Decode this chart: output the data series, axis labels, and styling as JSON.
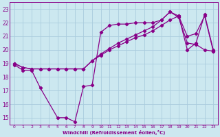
{
  "xlabel": "Windchill (Refroidissement éolien,°C)",
  "xlim": [
    -0.5,
    23.5
  ],
  "ylim": [
    14.5,
    23.5
  ],
  "yticks": [
    15,
    16,
    17,
    18,
    19,
    20,
    21,
    22,
    23
  ],
  "xticks": [
    0,
    1,
    2,
    3,
    4,
    5,
    6,
    7,
    8,
    9,
    10,
    11,
    12,
    13,
    14,
    15,
    16,
    17,
    18,
    19,
    20,
    21,
    22,
    23
  ],
  "bg_color": "#cce8f0",
  "grid_color": "#aaccdd",
  "line_color": "#880088",
  "line1_x": [
    0,
    1,
    2,
    3,
    5,
    6,
    7,
    8,
    9,
    10,
    11,
    12,
    13,
    14,
    15,
    16,
    17,
    18,
    19,
    20,
    21,
    22,
    23
  ],
  "line1_y": [
    18.9,
    18.5,
    18.5,
    17.2,
    15.0,
    15.0,
    14.7,
    17.3,
    17.4,
    21.3,
    21.8,
    21.9,
    21.9,
    22.0,
    22.0,
    22.0,
    22.2,
    22.8,
    22.4,
    20.5,
    20.4,
    20.0,
    19.9
  ],
  "line2_x": [
    0,
    1,
    2,
    3,
    4,
    5,
    6,
    7,
    8,
    9,
    10,
    11,
    12,
    13,
    14,
    15,
    16,
    17,
    18,
    19,
    20,
    21,
    22,
    23
  ],
  "line2_y": [
    19.0,
    18.7,
    18.6,
    18.6,
    18.6,
    18.6,
    18.6,
    18.6,
    18.6,
    19.2,
    19.6,
    20.0,
    20.3,
    20.6,
    20.9,
    21.1,
    21.4,
    21.8,
    22.2,
    22.5,
    21.0,
    21.2,
    22.5,
    19.9
  ],
  "line3_x": [
    0,
    1,
    2,
    3,
    4,
    5,
    6,
    7,
    8,
    9,
    10,
    11,
    12,
    13,
    14,
    15,
    16,
    17,
    18,
    19,
    20,
    21,
    22,
    23
  ],
  "line3_y": [
    19.0,
    18.7,
    18.6,
    18.6,
    18.6,
    18.6,
    18.6,
    18.6,
    18.6,
    19.2,
    19.7,
    20.1,
    20.5,
    20.8,
    21.1,
    21.4,
    21.7,
    22.2,
    22.8,
    22.5,
    20.0,
    20.5,
    22.6,
    20.0
  ]
}
